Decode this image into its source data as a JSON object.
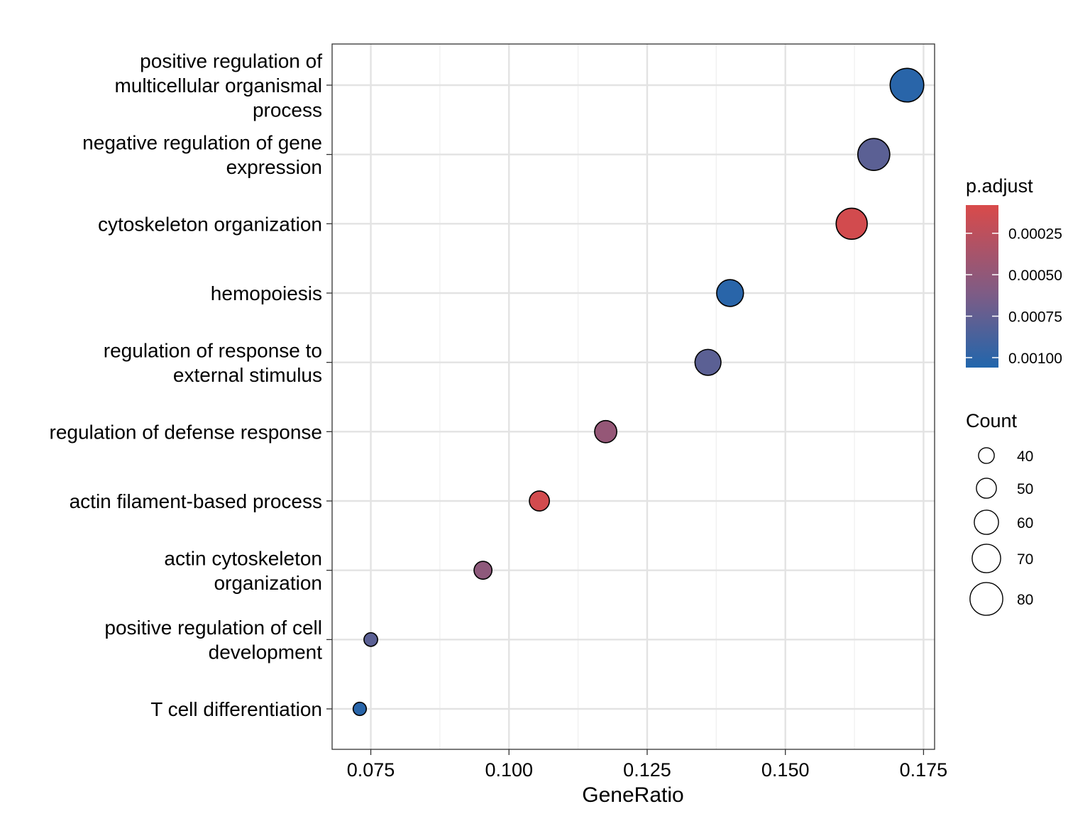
{
  "chart_data": {
    "type": "scatter",
    "title": "",
    "xlabel": "GeneRatio",
    "ylabel": "",
    "xlim": [
      0.068,
      0.177
    ],
    "x_ticks": [
      "0.075",
      "0.100",
      "0.125",
      "0.150",
      "0.175"
    ],
    "x_tick_values": [
      0.075,
      0.1,
      0.125,
      0.15,
      0.175
    ],
    "grid": true,
    "categories": [
      "positive regulation of multicellular organismal process",
      "negative regulation of gene expression",
      "cytoskeleton organization",
      "hemopoiesis",
      "regulation of response to external stimulus",
      "regulation of defense response",
      "actin filament-based process",
      "actin cytoskeleton organization",
      "positive regulation of cell development",
      "T cell differentiation"
    ],
    "category_lines": [
      [
        "positive regulation of",
        "multicellular organismal",
        "process"
      ],
      [
        "negative regulation of gene",
        "expression"
      ],
      [
        "cytoskeleton organization"
      ],
      [
        "hemopoiesis"
      ],
      [
        "regulation of response to",
        "external stimulus"
      ],
      [
        "regulation of defense response"
      ],
      [
        "actin filament-based process"
      ],
      [
        "actin cytoskeleton",
        "organization"
      ],
      [
        "positive regulation of cell",
        "development"
      ],
      [
        "T cell differentiation"
      ]
    ],
    "points": [
      {
        "term": "positive regulation of multicellular organismal process",
        "gene_ratio": 0.172,
        "count": 82,
        "p_adjust": 0.00102
      },
      {
        "term": "negative regulation of gene expression",
        "gene_ratio": 0.166,
        "count": 78,
        "p_adjust": 0.00078
      },
      {
        "term": "cytoskeleton organization",
        "gene_ratio": 0.162,
        "count": 76,
        "p_adjust": 0.00012
      },
      {
        "term": "hemopoiesis",
        "gene_ratio": 0.14,
        "count": 66,
        "p_adjust": 0.00102
      },
      {
        "term": "regulation of response to external stimulus",
        "gene_ratio": 0.136,
        "count": 64,
        "p_adjust": 0.00078
      },
      {
        "term": "regulation of defense response",
        "gene_ratio": 0.1175,
        "count": 55,
        "p_adjust": 0.00048
      },
      {
        "term": "actin filament-based process",
        "gene_ratio": 0.1055,
        "count": 50,
        "p_adjust": 0.00012
      },
      {
        "term": "actin cytoskeleton organization",
        "gene_ratio": 0.0953,
        "count": 45,
        "p_adjust": 0.00052
      },
      {
        "term": "positive regulation of cell development",
        "gene_ratio": 0.075,
        "count": 35,
        "p_adjust": 0.00078
      },
      {
        "term": "T cell differentiation",
        "gene_ratio": 0.073,
        "count": 34,
        "p_adjust": 0.00102
      }
    ],
    "color_legend": {
      "title": "p.adjust",
      "min": 8e-05,
      "max": 0.00106,
      "low_color": "#2166ac",
      "high_color": "#d94a4a",
      "mid_color": "#7d5c86",
      "tick_labels": [
        "0.00025",
        "0.00050",
        "0.00075",
        "0.00100"
      ],
      "tick_values": [
        0.00025,
        0.0005,
        0.00075,
        0.001
      ]
    },
    "size_legend": {
      "title": "Count",
      "labels": [
        "40",
        "50",
        "60",
        "70",
        "80"
      ],
      "values": [
        40,
        50,
        60,
        70,
        80
      ],
      "range": [
        33,
        83
      ]
    }
  }
}
